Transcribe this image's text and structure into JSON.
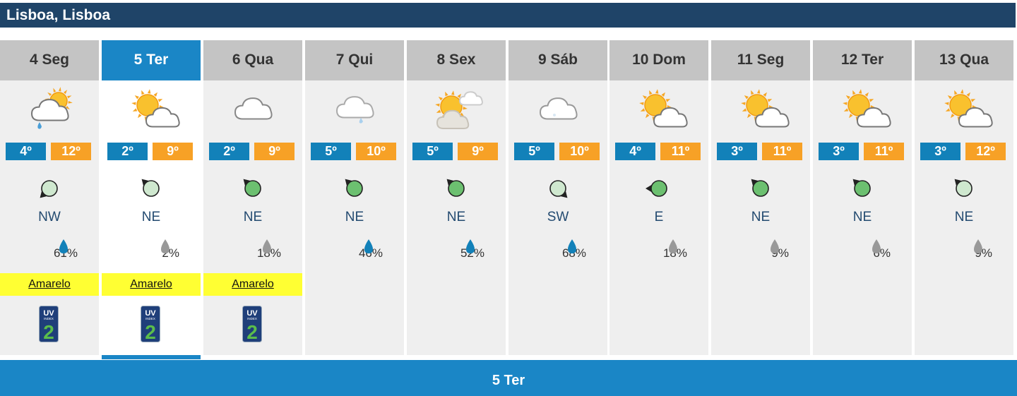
{
  "location": "Lisboa, Lisboa",
  "days": [
    {
      "label": "4 Seg",
      "min": "4º",
      "max": "12º",
      "wind": "NW",
      "rain": "61%",
      "rain_color": "#1281b9",
      "weather": "partly-cloudy-rain",
      "alert": "Amarelo",
      "uv": "2",
      "wind_angle": 135,
      "wind_color": "#cfe8cf"
    },
    {
      "label": "5 Ter",
      "min": "2º",
      "max": "9º",
      "wind": "NE",
      "rain": "2%",
      "rain_color": "#999999",
      "weather": "sun-cloud",
      "alert": "Amarelo",
      "uv": "2",
      "wind_angle": 225,
      "wind_color": "#cfe8cf",
      "selected": true
    },
    {
      "label": "6 Qua",
      "min": "2º",
      "max": "9º",
      "wind": "NE",
      "rain": "18%",
      "rain_color": "#999999",
      "weather": "cloud",
      "alert": "Amarelo",
      "uv": "2",
      "wind_angle": 225,
      "wind_color": "#6cc070"
    },
    {
      "label": "7 Qui",
      "min": "5º",
      "max": "10º",
      "wind": "NE",
      "rain": "46%",
      "rain_color": "#1281b9",
      "weather": "cloud-drizzle",
      "alert": "",
      "uv": "",
      "wind_angle": 225,
      "wind_color": "#6cc070"
    },
    {
      "label": "8 Sex",
      "min": "5º",
      "max": "9º",
      "wind": "NE",
      "rain": "52%",
      "rain_color": "#1281b9",
      "weather": "sun-clouds-faded",
      "alert": "",
      "uv": "",
      "wind_angle": 225,
      "wind_color": "#6cc070"
    },
    {
      "label": "9 Sáb",
      "min": "5º",
      "max": "10º",
      "wind": "SW",
      "rain": "68%",
      "rain_color": "#1281b9",
      "weather": "cloud-faded",
      "alert": "",
      "uv": "",
      "wind_angle": 45,
      "wind_color": "#cfe8cf"
    },
    {
      "label": "10 Dom",
      "min": "4º",
      "max": "11º",
      "wind": "E",
      "rain": "18%",
      "rain_color": "#999999",
      "weather": "sun-cloud",
      "alert": "",
      "uv": "",
      "wind_angle": 180,
      "wind_color": "#6cc070"
    },
    {
      "label": "11 Seg",
      "min": "3º",
      "max": "11º",
      "wind": "NE",
      "rain": "9%",
      "rain_color": "#999999",
      "weather": "sun-cloud",
      "alert": "",
      "uv": "",
      "wind_angle": 225,
      "wind_color": "#6cc070"
    },
    {
      "label": "12 Ter",
      "min": "3º",
      "max": "11º",
      "wind": "NE",
      "rain": "6%",
      "rain_color": "#999999",
      "weather": "sun-cloud",
      "alert": "",
      "uv": "",
      "wind_angle": 225,
      "wind_color": "#6cc070"
    },
    {
      "label": "13 Qua",
      "min": "3º",
      "max": "12º",
      "wind": "NE",
      "rain": "9%",
      "rain_color": "#999999",
      "weather": "sun-cloud",
      "alert": "",
      "uv": "",
      "wind_angle": 225,
      "wind_color": "#cfe8cf"
    }
  ],
  "selected_day": "5 Ter",
  "uv_label": "UV",
  "uv_sub": "INDEX",
  "colors": {
    "title_bg": "#1f4468",
    "accent": "#1a86c6",
    "min_temp": "#1281b9",
    "max_temp": "#f7a126",
    "alert_yellow": "#ffff33"
  }
}
